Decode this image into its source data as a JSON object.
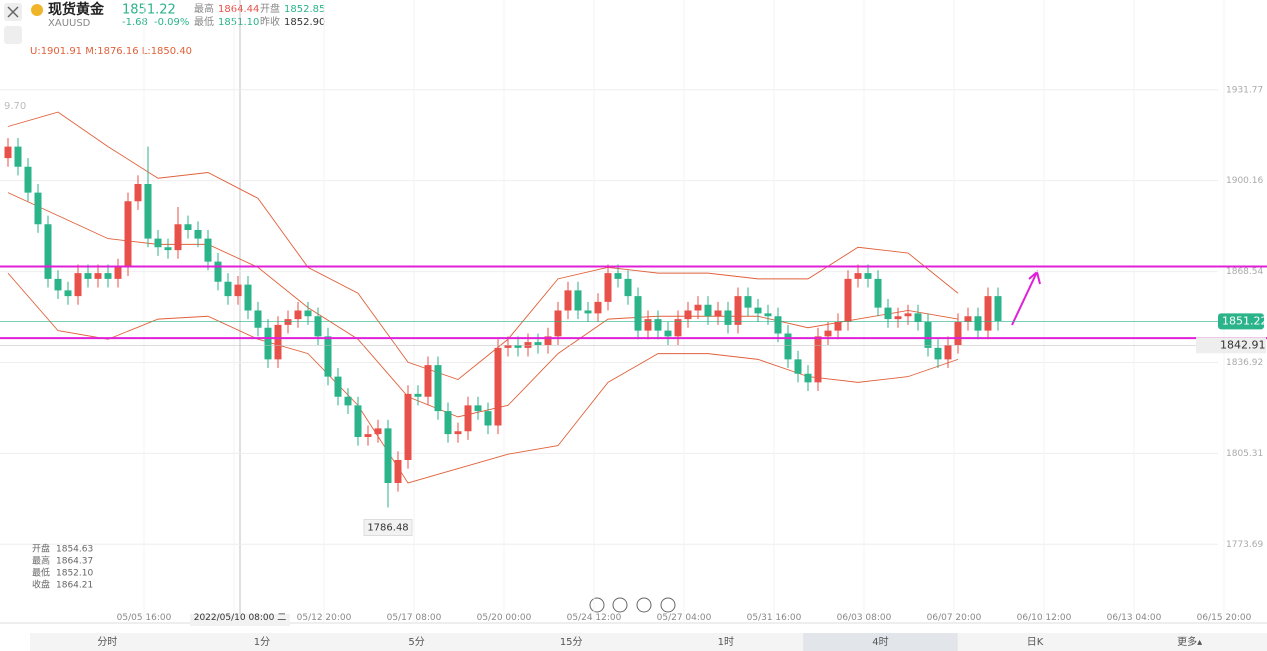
{
  "header": {
    "name": "现货黄金",
    "price": "1851.22",
    "symbol": "XAUUSD",
    "change": "-1.68",
    "change_pct": "-0.09%",
    "high_label": "最高",
    "high": "1864.44",
    "open_label": "开盘",
    "open": "1852.85",
    "low_label": "最低",
    "low": "1851.10",
    "prev_label": "昨收",
    "prev": "1852.90",
    "boll": "U:1901.91  M:1876.16  L:1850.40",
    "left_axis_fragment": "9.70"
  },
  "chart_data": {
    "type": "candlestick",
    "ylim": [
      1746.3,
      1963.0
    ],
    "yticks": [
      1931.77,
      1900.16,
      1868.54,
      1836.92,
      1805.31,
      1773.69
    ],
    "open": [
      1908,
      1912,
      1905,
      1896,
      1885,
      1866,
      1862,
      1860,
      1868,
      1866,
      1868,
      1866,
      1870,
      1893,
      1899,
      1880,
      1877,
      1876,
      1885,
      1883,
      1880,
      1872,
      1865,
      1860,
      1864,
      1855,
      1849,
      1838,
      1850,
      1852,
      1855,
      1853,
      1846,
      1832,
      1825,
      1822,
      1811,
      1812,
      1814,
      1795,
      1803,
      1826,
      1825,
      1836,
      1820,
      1812,
      1813,
      1822,
      1820,
      1815,
      1842,
      1843,
      1842,
      1844,
      1843,
      1846,
      1855,
      1862,
      1855,
      1854,
      1858,
      1868,
      1866,
      1860,
      1848,
      1852,
      1848,
      1846,
      1852,
      1855,
      1857,
      1853,
      1855,
      1850,
      1860,
      1856,
      1854,
      1853,
      1847,
      1838,
      1833,
      1830,
      1846,
      1848,
      1851,
      1866,
      1868,
      1866,
      1856,
      1852,
      1853,
      1854,
      1851,
      1842,
      1838,
      1843,
      1851,
      1853,
      1848,
      1860
    ],
    "close": [
      1912,
      1905,
      1896,
      1885,
      1866,
      1862,
      1860,
      1868,
      1866,
      1868,
      1866,
      1870,
      1893,
      1899,
      1880,
      1877,
      1876,
      1885,
      1883,
      1880,
      1872,
      1865,
      1860,
      1864,
      1855,
      1849,
      1838,
      1850,
      1852,
      1855,
      1853,
      1846,
      1832,
      1825,
      1822,
      1811,
      1812,
      1814,
      1795,
      1803,
      1826,
      1825,
      1836,
      1820,
      1812,
      1813,
      1822,
      1820,
      1815,
      1842,
      1843,
      1842,
      1844,
      1843,
      1846,
      1855,
      1862,
      1855,
      1854,
      1858,
      1868,
      1866,
      1860,
      1848,
      1852,
      1848,
      1846,
      1852,
      1855,
      1857,
      1853,
      1855,
      1850,
      1860,
      1856,
      1854,
      1853,
      1847,
      1838,
      1833,
      1830,
      1846,
      1848,
      1851,
      1866,
      1868,
      1866,
      1856,
      1852,
      1853,
      1854,
      1851,
      1842,
      1838,
      1843,
      1851,
      1853,
      1848,
      1860,
      1851.22
    ],
    "high": [
      1915,
      1915,
      1908,
      1899,
      1888,
      1869,
      1865,
      1871,
      1871,
      1871,
      1871,
      1873,
      1896,
      1902,
      1912,
      1883,
      1880,
      1891,
      1888,
      1886,
      1883,
      1875,
      1868,
      1867,
      1867,
      1858,
      1852,
      1853,
      1855,
      1858,
      1858,
      1856,
      1849,
      1835,
      1828,
      1825,
      1815,
      1817,
      1817,
      1806,
      1829,
      1829,
      1839,
      1839,
      1823,
      1816,
      1825,
      1825,
      1823,
      1845,
      1846,
      1846,
      1847,
      1847,
      1849,
      1858,
      1865,
      1865,
      1858,
      1861,
      1871,
      1871,
      1869,
      1863,
      1855,
      1855,
      1851,
      1855,
      1858,
      1860,
      1860,
      1858,
      1858,
      1863,
      1863,
      1859,
      1857,
      1856,
      1850,
      1841,
      1836,
      1849,
      1851,
      1854,
      1869,
      1871,
      1871,
      1869,
      1859,
      1856,
      1857,
      1857,
      1854,
      1845,
      1846,
      1854,
      1856,
      1856,
      1863,
      1863
    ],
    "low": [
      1905,
      1902,
      1893,
      1882,
      1863,
      1859,
      1857,
      1857,
      1863,
      1863,
      1863,
      1863,
      1867,
      1890,
      1877,
      1874,
      1873,
      1873,
      1880,
      1877,
      1869,
      1862,
      1857,
      1857,
      1852,
      1846,
      1835,
      1835,
      1847,
      1849,
      1850,
      1843,
      1829,
      1822,
      1819,
      1808,
      1808,
      1809,
      1786.48,
      1792,
      1800,
      1822,
      1822,
      1817,
      1809,
      1809,
      1810,
      1817,
      1812,
      1812,
      1839,
      1839,
      1839,
      1840,
      1840,
      1843,
      1852,
      1852,
      1851,
      1851,
      1855,
      1863,
      1857,
      1845,
      1845,
      1845,
      1843,
      1843,
      1849,
      1852,
      1850,
      1850,
      1847,
      1847,
      1853,
      1851,
      1850,
      1844,
      1835,
      1830,
      1827,
      1827,
      1843,
      1845,
      1848,
      1863,
      1863,
      1853,
      1849,
      1849,
      1850,
      1848,
      1839,
      1835,
      1835,
      1840,
      1848,
      1845,
      1845,
      1848
    ],
    "up_color": "#e8514a",
    "down_color": "#2bb38a",
    "bollinger": {
      "color": "#e0603a",
      "upper": [
        1919,
        1924,
        1912,
        1901,
        1903,
        1894,
        1870,
        1861,
        1837,
        1831,
        1845,
        1866,
        1870,
        1868,
        1868,
        1866,
        1866,
        1877,
        1875,
        1861
      ],
      "middle": [
        1896,
        1888,
        1880,
        1878,
        1878,
        1870,
        1856,
        1845,
        1825,
        1818,
        1822,
        1840,
        1852,
        1853,
        1853,
        1853,
        1849,
        1852,
        1855,
        1852
      ],
      "lower": [
        1868,
        1848,
        1845,
        1852,
        1853,
        1845,
        1840,
        1822,
        1795,
        1800,
        1805,
        1808,
        1830,
        1840,
        1840,
        1838,
        1832,
        1830,
        1832,
        1838
      ]
    },
    "hlines": [
      {
        "value": 1870.3,
        "color": "#e020d8"
      },
      {
        "value": 1845.4,
        "color": "#e020d8"
      }
    ],
    "price_line": {
      "value": 1851.22,
      "color": "#2bb38a"
    },
    "alert_line": {
      "value": 1842.91
    },
    "low_annotation": "1786.48",
    "x_labels": [
      "05/05 16:00",
      "05/12 20:00",
      "05/17 08:00",
      "05/20 00:00",
      "05/24 12:00",
      "05/27 04:00",
      "05/31 16:00",
      "06/03 08:00",
      "06/07 20:00",
      "06/10 12:00",
      "06/13 04:00",
      "06/15 20:00"
    ],
    "crosshair_label": "2022/05/10 08:00 二"
  },
  "ohlc_panel": [
    [
      "开盘",
      "1854.63"
    ],
    [
      "最高",
      "1864.37"
    ],
    [
      "最低",
      "1852.10"
    ],
    [
      "收盘",
      "1864.21"
    ]
  ],
  "tabs": [
    "分时",
    "1分",
    "5分",
    "15分",
    "1时",
    "4时",
    "日K",
    "更多▴"
  ],
  "selected_tab": 5
}
